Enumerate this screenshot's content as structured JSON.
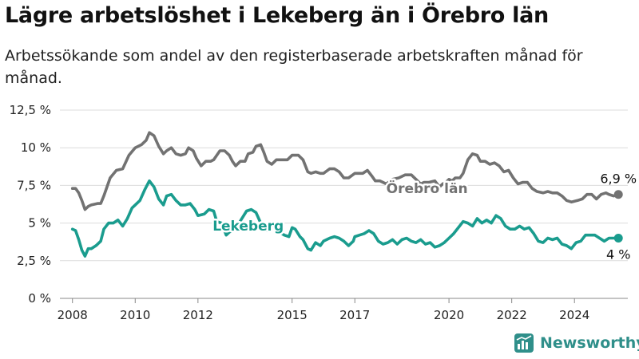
{
  "title": "Lägre arbetslöshet i Lekeberg än i Örebro län",
  "subtitle": "Arbetssökande som andel av den registerbaserade arbetskraften månad för månad.",
  "brand": "Newsworthy",
  "colors": {
    "orebro": "#727272",
    "lekeberg": "#1a9c8e",
    "grid": "#dcdcdc"
  },
  "chart_data": {
    "type": "line",
    "ylim": [
      0,
      12.5
    ],
    "xlim": [
      2007.6,
      2025.7
    ],
    "y_ticks": [
      {
        "value": 0,
        "label": "0 %"
      },
      {
        "value": 2.5,
        "label": "2,5 %"
      },
      {
        "value": 5,
        "label": "5 %"
      },
      {
        "value": 7.5,
        "label": "7,5 %"
      },
      {
        "value": 10,
        "label": "10 %"
      },
      {
        "value": 12.5,
        "label": "12,5 %"
      }
    ],
    "x_ticks": [
      {
        "value": 2008,
        "label": "2008"
      },
      {
        "value": 2010,
        "label": "2010"
      },
      {
        "value": 2012,
        "label": "2012"
      },
      {
        "value": 2015,
        "label": "2015"
      },
      {
        "value": 2017,
        "label": "2017"
      },
      {
        "value": 2020,
        "label": "2020"
      },
      {
        "value": 2022,
        "label": "2022"
      },
      {
        "value": 2024,
        "label": "2024"
      }
    ],
    "grid": true,
    "series": [
      {
        "name": "Örebro län",
        "color": "#727272",
        "end_label": "6,9 %",
        "points": [
          [
            2008.0,
            7.3
          ],
          [
            2008.1,
            7.3
          ],
          [
            2008.2,
            7.0
          ],
          [
            2008.3,
            6.5
          ],
          [
            2008.4,
            5.9
          ],
          [
            2008.5,
            6.1
          ],
          [
            2008.6,
            6.2
          ],
          [
            2008.8,
            6.3
          ],
          [
            2008.9,
            6.3
          ],
          [
            2009.0,
            6.8
          ],
          [
            2009.2,
            8.0
          ],
          [
            2009.4,
            8.5
          ],
          [
            2009.6,
            8.6
          ],
          [
            2009.8,
            9.5
          ],
          [
            2010.0,
            10.0
          ],
          [
            2010.2,
            10.2
          ],
          [
            2010.35,
            10.5
          ],
          [
            2010.45,
            11.0
          ],
          [
            2010.6,
            10.8
          ],
          [
            2010.75,
            10.1
          ],
          [
            2010.9,
            9.6
          ],
          [
            2011.0,
            9.8
          ],
          [
            2011.15,
            10.0
          ],
          [
            2011.3,
            9.6
          ],
          [
            2011.45,
            9.5
          ],
          [
            2011.6,
            9.6
          ],
          [
            2011.7,
            10.0
          ],
          [
            2011.85,
            9.8
          ],
          [
            2011.95,
            9.3
          ],
          [
            2012.1,
            8.8
          ],
          [
            2012.25,
            9.1
          ],
          [
            2012.4,
            9.1
          ],
          [
            2012.5,
            9.2
          ],
          [
            2012.6,
            9.5
          ],
          [
            2012.7,
            9.8
          ],
          [
            2012.85,
            9.8
          ],
          [
            2013.0,
            9.5
          ],
          [
            2013.1,
            9.1
          ],
          [
            2013.2,
            8.8
          ],
          [
            2013.35,
            9.1
          ],
          [
            2013.5,
            9.1
          ],
          [
            2013.6,
            9.6
          ],
          [
            2013.75,
            9.7
          ],
          [
            2013.85,
            10.1
          ],
          [
            2014.0,
            10.2
          ],
          [
            2014.1,
            9.7
          ],
          [
            2014.2,
            9.1
          ],
          [
            2014.35,
            8.9
          ],
          [
            2014.5,
            9.2
          ],
          [
            2014.65,
            9.2
          ],
          [
            2014.85,
            9.2
          ],
          [
            2015.0,
            9.5
          ],
          [
            2015.2,
            9.5
          ],
          [
            2015.35,
            9.2
          ],
          [
            2015.5,
            8.4
          ],
          [
            2015.6,
            8.3
          ],
          [
            2015.75,
            8.4
          ],
          [
            2015.9,
            8.3
          ],
          [
            2016.0,
            8.3
          ],
          [
            2016.2,
            8.6
          ],
          [
            2016.35,
            8.6
          ],
          [
            2016.5,
            8.4
          ],
          [
            2016.65,
            8.0
          ],
          [
            2016.8,
            8.0
          ],
          [
            2017.0,
            8.3
          ],
          [
            2017.1,
            8.3
          ],
          [
            2017.25,
            8.3
          ],
          [
            2017.4,
            8.5
          ],
          [
            2017.55,
            8.1
          ],
          [
            2017.65,
            7.8
          ],
          [
            2017.8,
            7.8
          ],
          [
            2018.0,
            7.6
          ],
          [
            2018.2,
            7.9
          ],
          [
            2018.4,
            8.0
          ],
          [
            2018.6,
            8.2
          ],
          [
            2018.8,
            8.2
          ],
          [
            2018.95,
            7.9
          ],
          [
            2019.1,
            7.6
          ],
          [
            2019.2,
            7.7
          ],
          [
            2019.35,
            7.7
          ],
          [
            2019.55,
            7.8
          ],
          [
            2019.7,
            7.4
          ],
          [
            2019.8,
            7.6
          ],
          [
            2019.9,
            7.7
          ],
          [
            2020.0,
            7.9
          ],
          [
            2020.1,
            7.8
          ],
          [
            2020.2,
            8.0
          ],
          [
            2020.35,
            8.0
          ],
          [
            2020.45,
            8.3
          ],
          [
            2020.6,
            9.2
          ],
          [
            2020.75,
            9.6
          ],
          [
            2020.9,
            9.5
          ],
          [
            2021.0,
            9.1
          ],
          [
            2021.15,
            9.1
          ],
          [
            2021.3,
            8.9
          ],
          [
            2021.45,
            9.0
          ],
          [
            2021.6,
            8.8
          ],
          [
            2021.75,
            8.4
          ],
          [
            2021.9,
            8.5
          ],
          [
            2022.05,
            8.0
          ],
          [
            2022.2,
            7.6
          ],
          [
            2022.35,
            7.7
          ],
          [
            2022.5,
            7.7
          ],
          [
            2022.65,
            7.3
          ],
          [
            2022.8,
            7.1
          ],
          [
            2023.0,
            7.0
          ],
          [
            2023.15,
            7.1
          ],
          [
            2023.3,
            7.0
          ],
          [
            2023.45,
            7.0
          ],
          [
            2023.6,
            6.8
          ],
          [
            2023.75,
            6.5
          ],
          [
            2023.9,
            6.4
          ],
          [
            2024.1,
            6.5
          ],
          [
            2024.25,
            6.6
          ],
          [
            2024.4,
            6.9
          ],
          [
            2024.55,
            6.9
          ],
          [
            2024.7,
            6.6
          ],
          [
            2024.85,
            6.9
          ],
          [
            2025.0,
            7.0
          ],
          [
            2025.1,
            6.9
          ],
          [
            2025.25,
            6.8
          ],
          [
            2025.4,
            6.9
          ]
        ]
      },
      {
        "name": "Lekeberg",
        "color": "#1a9c8e",
        "end_label": "4 %",
        "points": [
          [
            2008.0,
            4.6
          ],
          [
            2008.1,
            4.5
          ],
          [
            2008.2,
            3.9
          ],
          [
            2008.3,
            3.2
          ],
          [
            2008.4,
            2.8
          ],
          [
            2008.5,
            3.3
          ],
          [
            2008.6,
            3.3
          ],
          [
            2008.75,
            3.5
          ],
          [
            2008.9,
            3.8
          ],
          [
            2009.0,
            4.6
          ],
          [
            2009.15,
            5.0
          ],
          [
            2009.3,
            5.0
          ],
          [
            2009.45,
            5.2
          ],
          [
            2009.6,
            4.8
          ],
          [
            2009.75,
            5.3
          ],
          [
            2009.9,
            6.0
          ],
          [
            2010.0,
            6.2
          ],
          [
            2010.15,
            6.5
          ],
          [
            2010.3,
            7.2
          ],
          [
            2010.45,
            7.8
          ],
          [
            2010.6,
            7.4
          ],
          [
            2010.75,
            6.6
          ],
          [
            2010.9,
            6.2
          ],
          [
            2011.0,
            6.8
          ],
          [
            2011.15,
            6.9
          ],
          [
            2011.3,
            6.5
          ],
          [
            2011.45,
            6.2
          ],
          [
            2011.6,
            6.2
          ],
          [
            2011.75,
            6.3
          ],
          [
            2011.9,
            5.9
          ],
          [
            2012.0,
            5.5
          ],
          [
            2012.2,
            5.6
          ],
          [
            2012.35,
            5.9
          ],
          [
            2012.5,
            5.8
          ],
          [
            2012.6,
            5.1
          ],
          [
            2012.75,
            5.0
          ],
          [
            2012.9,
            4.2
          ],
          [
            2013.0,
            4.4
          ],
          [
            2013.2,
            4.6
          ],
          [
            2013.4,
            5.3
          ],
          [
            2013.55,
            5.8
          ],
          [
            2013.7,
            5.9
          ],
          [
            2013.85,
            5.7
          ],
          [
            2014.0,
            5.0
          ],
          [
            2014.2,
            4.5
          ],
          [
            2014.4,
            5.0
          ],
          [
            2014.6,
            4.4
          ],
          [
            2014.75,
            4.2
          ],
          [
            2014.9,
            4.1
          ],
          [
            2015.0,
            4.7
          ],
          [
            2015.1,
            4.6
          ],
          [
            2015.25,
            4.1
          ],
          [
            2015.35,
            3.9
          ],
          [
            2015.5,
            3.3
          ],
          [
            2015.6,
            3.2
          ],
          [
            2015.75,
            3.7
          ],
          [
            2015.9,
            3.5
          ],
          [
            2016.0,
            3.8
          ],
          [
            2016.2,
            4.0
          ],
          [
            2016.35,
            4.1
          ],
          [
            2016.5,
            4.0
          ],
          [
            2016.65,
            3.8
          ],
          [
            2016.8,
            3.5
          ],
          [
            2016.95,
            3.8
          ],
          [
            2017.0,
            4.1
          ],
          [
            2017.15,
            4.2
          ],
          [
            2017.3,
            4.3
          ],
          [
            2017.45,
            4.5
          ],
          [
            2017.6,
            4.3
          ],
          [
            2017.75,
            3.8
          ],
          [
            2017.9,
            3.6
          ],
          [
            2018.05,
            3.7
          ],
          [
            2018.2,
            3.9
          ],
          [
            2018.35,
            3.6
          ],
          [
            2018.5,
            3.9
          ],
          [
            2018.65,
            4.0
          ],
          [
            2018.8,
            3.8
          ],
          [
            2018.95,
            3.7
          ],
          [
            2019.1,
            3.9
          ],
          [
            2019.25,
            3.6
          ],
          [
            2019.4,
            3.7
          ],
          [
            2019.55,
            3.4
          ],
          [
            2019.7,
            3.5
          ],
          [
            2019.85,
            3.7
          ],
          [
            2020.0,
            4.0
          ],
          [
            2020.15,
            4.3
          ],
          [
            2020.3,
            4.7
          ],
          [
            2020.45,
            5.1
          ],
          [
            2020.6,
            5.0
          ],
          [
            2020.75,
            4.8
          ],
          [
            2020.9,
            5.3
          ],
          [
            2021.05,
            5.0
          ],
          [
            2021.2,
            5.2
          ],
          [
            2021.35,
            5.0
          ],
          [
            2021.5,
            5.5
          ],
          [
            2021.65,
            5.3
          ],
          [
            2021.8,
            4.8
          ],
          [
            2021.95,
            4.6
          ],
          [
            2022.1,
            4.6
          ],
          [
            2022.25,
            4.8
          ],
          [
            2022.4,
            4.6
          ],
          [
            2022.55,
            4.7
          ],
          [
            2022.7,
            4.3
          ],
          [
            2022.85,
            3.8
          ],
          [
            2023.0,
            3.7
          ],
          [
            2023.15,
            4.0
          ],
          [
            2023.3,
            3.9
          ],
          [
            2023.45,
            4.0
          ],
          [
            2023.6,
            3.6
          ],
          [
            2023.75,
            3.5
          ],
          [
            2023.9,
            3.3
          ],
          [
            2024.05,
            3.7
          ],
          [
            2024.2,
            3.8
          ],
          [
            2024.35,
            4.2
          ],
          [
            2024.5,
            4.2
          ],
          [
            2024.65,
            4.2
          ],
          [
            2024.8,
            4.0
          ],
          [
            2024.95,
            3.8
          ],
          [
            2025.1,
            4.0
          ],
          [
            2025.25,
            4.0
          ],
          [
            2025.4,
            4.0
          ]
        ]
      }
    ],
    "labels": {
      "orebro": "Örebro län",
      "lekeberg": "Lekeberg"
    }
  }
}
